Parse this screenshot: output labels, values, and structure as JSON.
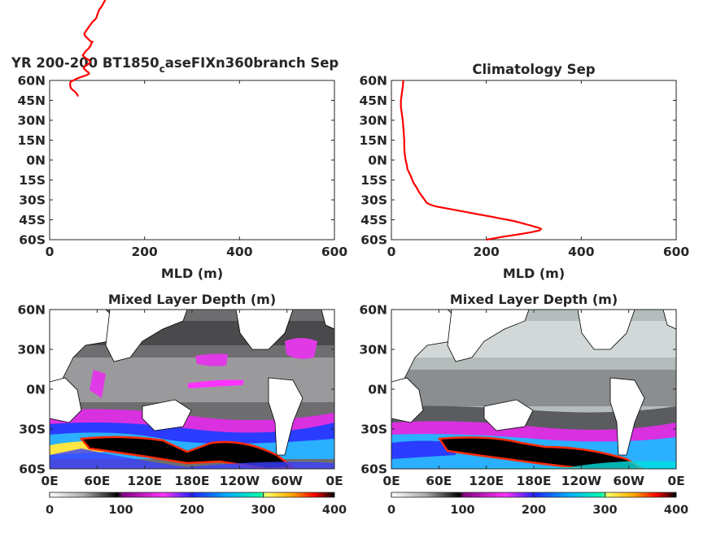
{
  "chart_data": [
    {
      "type": "line",
      "title": "YR 200-200 BT1850",
      "title_subscript": "c",
      "title_rest": "aseFIXn360branch Sep",
      "xlabel": "MLD (m)",
      "ylabel": "",
      "xlim": [
        0,
        600
      ],
      "ylim": [
        -60,
        60
      ],
      "x_ticks": [
        "0",
        "200",
        "400",
        "600"
      ],
      "y_ticks": [
        "60N",
        "45N",
        "30N",
        "15N",
        "0N",
        "15S",
        "30S",
        "45S",
        "60S"
      ],
      "line_color": "#ff0000",
      "series": [
        {
          "name": "",
          "points": [
            [
              60,
              48
            ],
            [
              57,
              50
            ],
            [
              52,
              52
            ],
            [
              48,
              53
            ],
            [
              45,
              54
            ],
            [
              44,
              55
            ],
            [
              43,
              57
            ],
            [
              44,
              59
            ],
            [
              50,
              60
            ],
            [
              55,
              61
            ],
            [
              62,
              62
            ],
            [
              70,
              63
            ],
            [
              78,
              64
            ],
            [
              83,
              65
            ],
            [
              82,
              66
            ],
            [
              78,
              67
            ],
            [
              75,
              68
            ],
            [
              72,
              69
            ],
            [
              72,
              70
            ],
            [
              76,
              71
            ],
            [
              80,
              72
            ],
            [
              84,
              73
            ],
            [
              85,
              74
            ],
            [
              84,
              75
            ],
            [
              80,
              76
            ],
            [
              75,
              77
            ],
            [
              72,
              78
            ],
            [
              70,
              79
            ],
            [
              72,
              80
            ],
            [
              76,
              82
            ],
            [
              82,
              84
            ],
            [
              86,
              86
            ],
            [
              88,
              88
            ],
            [
              90,
              89
            ],
            [
              88,
              89
            ],
            [
              85,
              90
            ],
            [
              82,
              91
            ],
            [
              79,
              92
            ],
            [
              76,
              93
            ],
            [
              74,
              94
            ],
            [
              73,
              95
            ],
            [
              74,
              96
            ],
            [
              76,
              97
            ],
            [
              78,
              98
            ],
            [
              80,
              99
            ],
            [
              82,
              100
            ],
            [
              84,
              101
            ],
            [
              86,
              102
            ],
            [
              88,
              103
            ],
            [
              90,
              104
            ],
            [
              93,
              105
            ],
            [
              96,
              106
            ],
            [
              98,
              107
            ],
            [
              99,
              108
            ],
            [
              100,
              109
            ],
            [
              101,
              110
            ],
            [
              102,
              111
            ],
            [
              103,
              112
            ],
            [
              104,
              113
            ],
            [
              106,
              114
            ],
            [
              108,
              115
            ],
            [
              110,
              116
            ],
            [
              113,
              118
            ],
            [
              116,
              120
            ],
            [
              118,
              122
            ],
            [
              120,
              124
            ],
            [
              122,
              126
            ],
            [
              124,
              128
            ],
            [
              126,
              130
            ],
            [
              128,
              132
            ],
            [
              130,
              134
            ],
            [
              132,
              136
            ],
            [
              135,
              138
            ],
            [
              138,
              140
            ],
            [
              141,
              142
            ],
            [
              144,
              144
            ],
            [
              147,
              146
            ],
            [
              150,
              148
            ],
            [
              153,
              150
            ],
            [
              156,
              152
            ],
            [
              160,
              154
            ],
            [
              164,
              156
            ],
            [
              168,
              158
            ],
            [
              172,
              160
            ],
            [
              176,
              162
            ],
            [
              180,
              164
            ],
            [
              184,
              166
            ],
            [
              187,
              168
            ],
            [
              190,
              170
            ],
            [
              195,
              172
            ],
            [
              200,
              174
            ],
            [
              210,
              175
            ],
            [
              220,
              176
            ],
            [
              230,
              177
            ],
            [
              240,
              177
            ],
            [
              250,
              178
            ],
            [
              258,
              178
            ],
            [
              265,
              179
            ],
            [
              270,
              180
            ],
            [
              275,
              182
            ],
            [
              280,
              184
            ],
            [
              285,
              186
            ],
            [
              290,
              188
            ],
            [
              293,
              190
            ],
            [
              295,
              192
            ],
            [
              296,
              194
            ],
            [
              295,
              196
            ],
            [
              293,
              198
            ],
            [
              290,
              200
            ],
            [
              286,
              202
            ],
            [
              280,
              204
            ],
            [
              270,
              206
            ],
            [
              260,
              208
            ],
            [
              248,
              210
            ],
            [
              236,
              212
            ],
            [
              224,
              214
            ],
            [
              212,
              216
            ],
            [
              200,
              218
            ],
            [
              190,
              220
            ]
          ]
        }
      ]
    },
    {
      "type": "line",
      "title": "Climatology Sep",
      "xlabel": "MLD (m)",
      "ylabel": "",
      "xlim": [
        0,
        600
      ],
      "ylim": [
        -60,
        60
      ],
      "x_ticks": [
        "0",
        "200",
        "400",
        "600"
      ],
      "y_ticks": [
        "60N",
        "45N",
        "30N",
        "15N",
        "0N",
        "15S",
        "30S",
        "45S",
        "60S"
      ],
      "line_color": "#ff0000",
      "series": [
        {
          "name": "",
          "points": [
            [
              25,
              60
            ],
            [
              24,
              55
            ],
            [
              22,
              50
            ],
            [
              20,
              45
            ],
            [
              20,
              40
            ],
            [
              22,
              35
            ],
            [
              24,
              30
            ],
            [
              25,
              25
            ],
            [
              26,
              20
            ],
            [
              27,
              15
            ],
            [
              27,
              10
            ],
            [
              28,
              5
            ],
            [
              30,
              0
            ],
            [
              32,
              -3
            ],
            [
              34,
              -7
            ],
            [
              38,
              -10
            ],
            [
              42,
              -13
            ],
            [
              45,
              -16
            ],
            [
              48,
              -18
            ],
            [
              52,
              -20
            ],
            [
              55,
              -22
            ],
            [
              58,
              -24
            ],
            [
              60,
              -25
            ],
            [
              62,
              -26
            ],
            [
              64,
              -27
            ],
            [
              66,
              -28
            ],
            [
              68,
              -29
            ],
            [
              70,
              -30
            ],
            [
              72,
              -31
            ],
            [
              74,
              -32
            ],
            [
              78,
              -33
            ],
            [
              85,
              -34
            ],
            [
              95,
              -35
            ],
            [
              110,
              -36
            ],
            [
              125,
              -37
            ],
            [
              140,
              -38
            ],
            [
              155,
              -39
            ],
            [
              170,
              -40
            ],
            [
              185,
              -41
            ],
            [
              200,
              -42
            ],
            [
              215,
              -43
            ],
            [
              230,
              -44
            ],
            [
              245,
              -45
            ],
            [
              258,
              -46
            ],
            [
              270,
              -47
            ],
            [
              280,
              -48
            ],
            [
              290,
              -49
            ],
            [
              300,
              -50
            ],
            [
              310,
              -51
            ],
            [
              315,
              -52
            ],
            [
              312,
              -53
            ],
            [
              300,
              -54
            ],
            [
              285,
              -55
            ],
            [
              268,
              -56
            ],
            [
              250,
              -57
            ],
            [
              232,
              -58
            ],
            [
              216,
              -59
            ],
            [
              200,
              -60
            ]
          ]
        }
      ]
    },
    {
      "type": "heatmap",
      "title": "Mixed Layer Depth (m)",
      "x_ticks": [
        "0E",
        "60E",
        "120E",
        "180E",
        "120W",
        "60W",
        "0E"
      ],
      "y_ticks": [
        "60N",
        "30N",
        "0N",
        "30S",
        "60S"
      ],
      "ylim": [
        -60,
        60
      ],
      "xlim": [
        0,
        360
      ],
      "colorbar": {
        "ticks": [
          "0",
          "100",
          "200",
          "300",
          "400"
        ],
        "range": [
          0,
          400
        ],
        "colors": [
          "#ffffff",
          "#7a7a7a",
          "#000000",
          "#ff00ff",
          "#0000ff",
          "#00ffff",
          "#ffff00",
          "#ff0000",
          "#000000"
        ]
      }
    },
    {
      "type": "heatmap",
      "title": "Mixed Layer Depth (m)",
      "x_ticks": [
        "0E",
        "60E",
        "120E",
        "180E",
        "120W",
        "60W",
        "0E"
      ],
      "y_ticks": [
        "60N",
        "30N",
        "0N",
        "30S",
        "60S"
      ],
      "ylim": [
        -60,
        60
      ],
      "xlim": [
        0,
        360
      ],
      "colorbar": {
        "ticks": [
          "0",
          "100",
          "200",
          "300",
          "400"
        ],
        "range": [
          0,
          400
        ],
        "colors": [
          "#ffffff",
          "#7a7a7a",
          "#000000",
          "#ff00ff",
          "#0000ff",
          "#00ffff",
          "#ffff00",
          "#ff0000",
          "#000000"
        ]
      }
    }
  ]
}
